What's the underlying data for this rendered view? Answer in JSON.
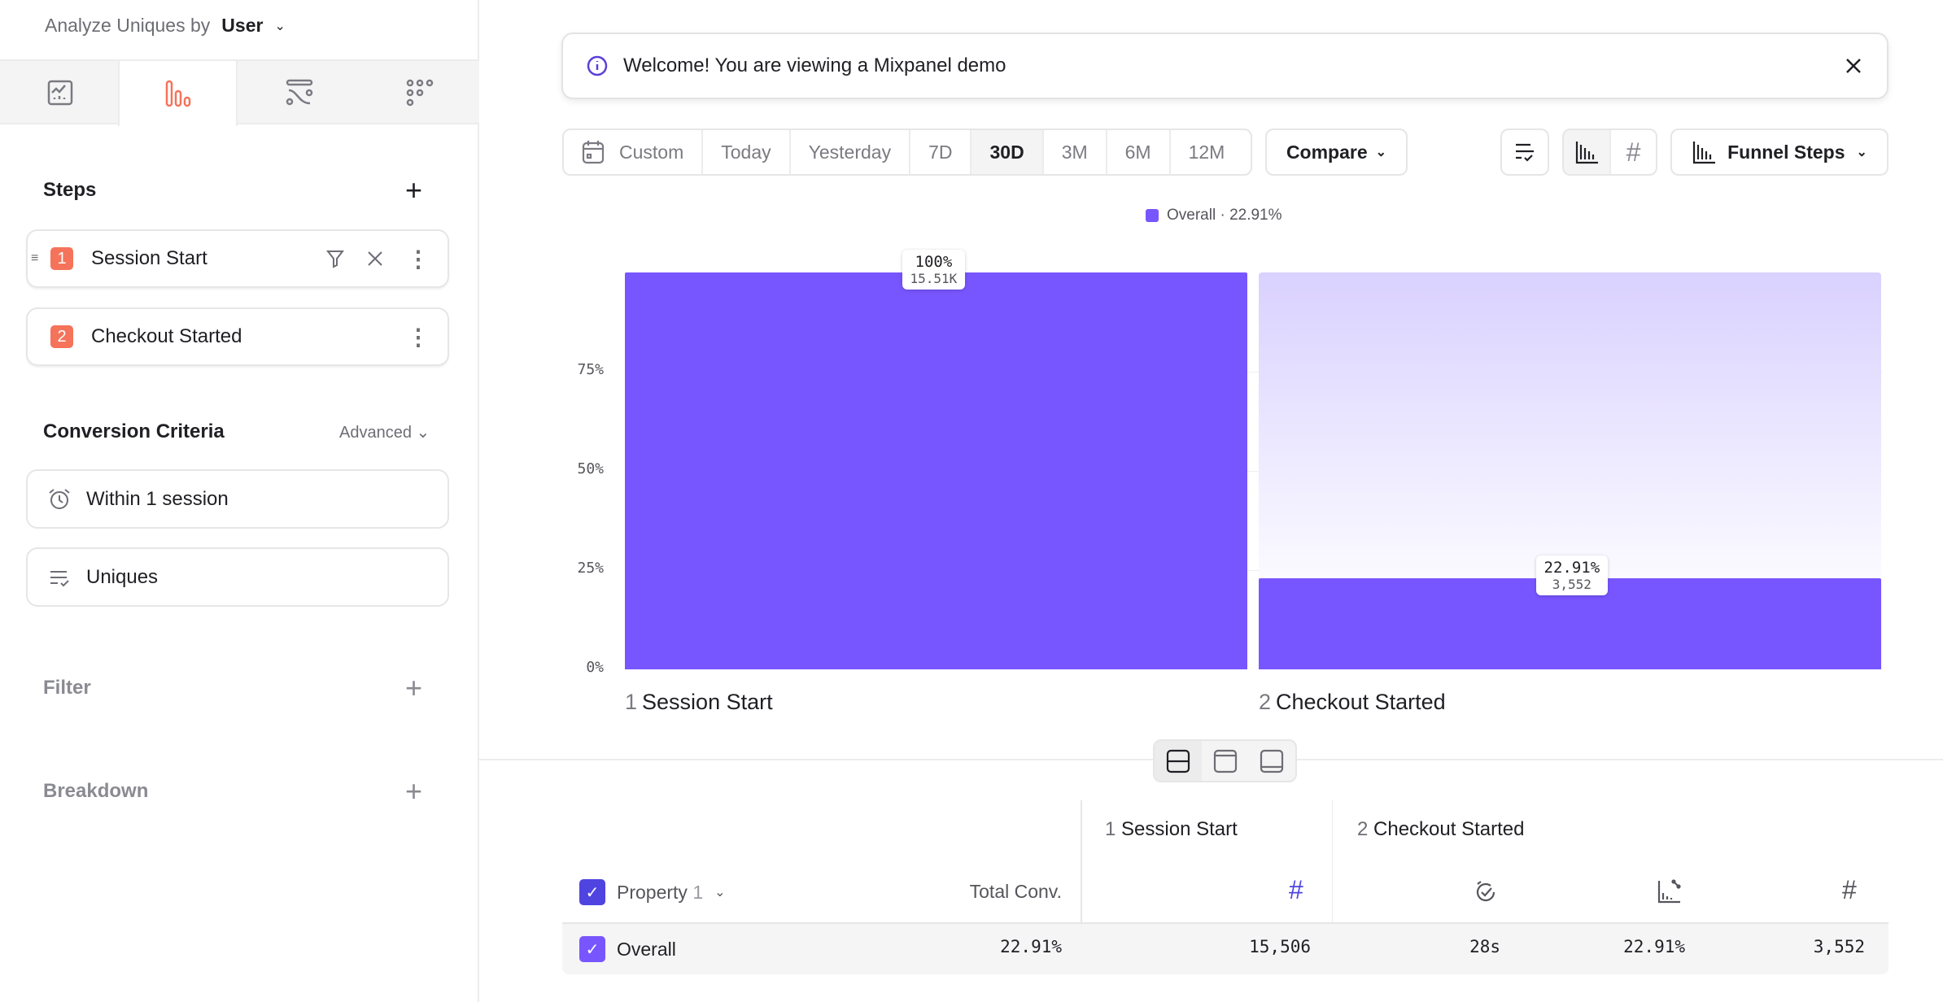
{
  "sidebar": {
    "analyze_label": "Analyze Uniques by",
    "analyze_value": "User",
    "tabs": [
      {
        "icon": "insights-icon"
      },
      {
        "icon": "funnels-icon",
        "active": true
      },
      {
        "icon": "flows-icon"
      },
      {
        "icon": "retention-icon"
      }
    ],
    "steps_title": "Steps",
    "steps": [
      {
        "num": "1",
        "label": "Session Start"
      },
      {
        "num": "2",
        "label": "Checkout Started"
      }
    ],
    "conversion_title": "Conversion Criteria",
    "advanced_label": "Advanced",
    "criteria": [
      {
        "icon": "alarm-clock-icon",
        "label": "Within 1 session"
      },
      {
        "icon": "list-check-icon",
        "label": "Uniques"
      }
    ],
    "filter_label": "Filter",
    "breakdown_label": "Breakdown",
    "accent": "#f4735a"
  },
  "banner": {
    "text": "Welcome! You are viewing a Mixpanel demo"
  },
  "toolbar": {
    "date_ranges": [
      "Custom",
      "Today",
      "Yesterday",
      "7D",
      "30D",
      "3M",
      "6M",
      "12M"
    ],
    "selected_range": "30D",
    "compare_label": "Compare",
    "chart_type_label": "Funnel Steps"
  },
  "chart_data": {
    "type": "bar",
    "legend": "Overall · 22.91%",
    "legend_placement": "top-center",
    "categories": [
      {
        "num": "1",
        "label": "Session Start"
      },
      {
        "num": "2",
        "label": "Checkout Started"
      }
    ],
    "series": [
      {
        "name": "Overall",
        "values": [
          100,
          22.91
        ],
        "counts": [
          "15.51K",
          "3,552"
        ],
        "pct_labels": [
          "100%",
          "22.91%"
        ],
        "color": "#7856ff"
      }
    ],
    "yticks": [
      "0%",
      "25%",
      "50%",
      "75%"
    ],
    "ylim": [
      0,
      100
    ]
  },
  "table": {
    "property_header": "Property",
    "property_index": "1",
    "total_conv_header": "Total Conv.",
    "step1_num": "1",
    "step1_label": "Session Start",
    "step2_num": "2",
    "step2_label": "Checkout Started",
    "rows": [
      {
        "label": "Overall",
        "total_conv": "22.91%",
        "step1_count": "15,506",
        "step2_time": "28s",
        "step2_conv": "22.91%",
        "step2_count": "3,552"
      }
    ]
  }
}
